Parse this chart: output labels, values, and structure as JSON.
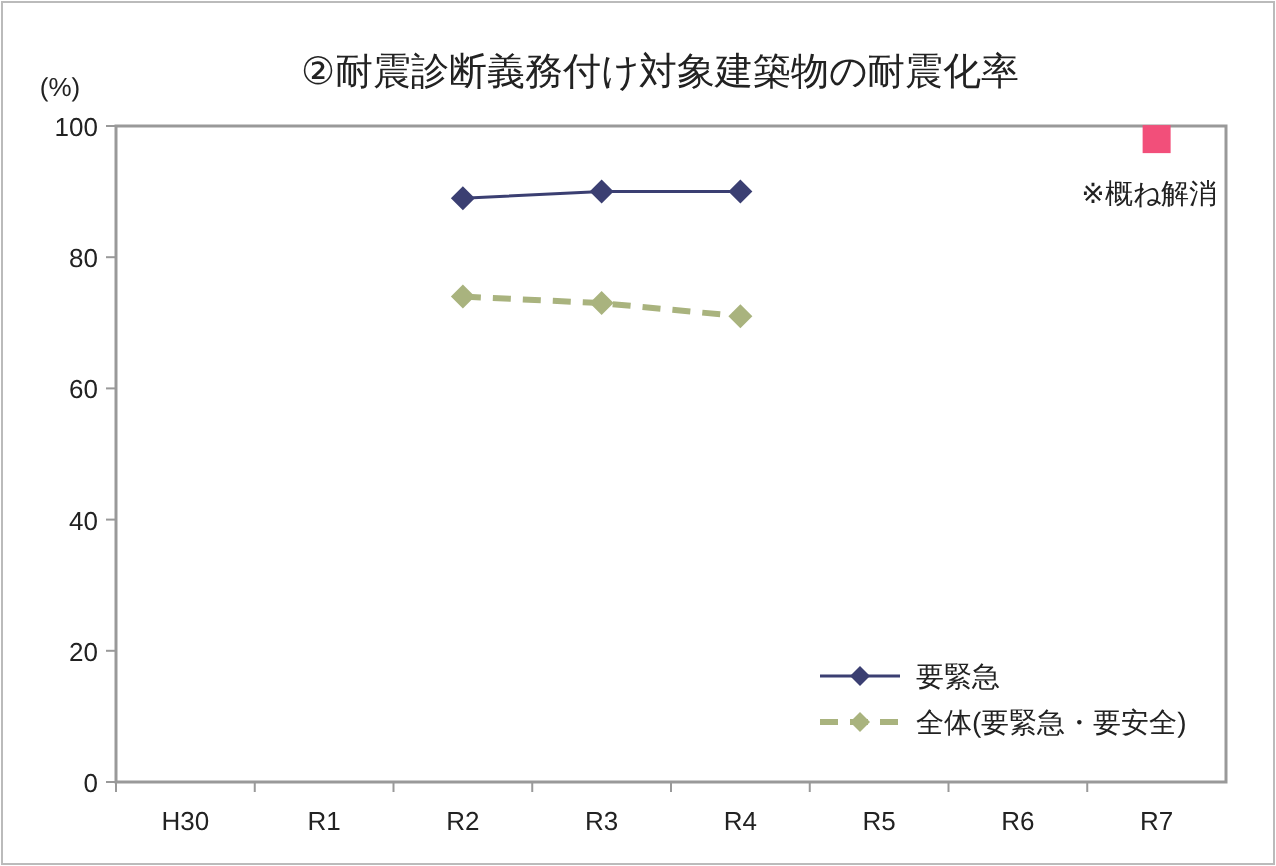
{
  "chart_data": {
    "type": "line",
    "title": "②耐震診断義務付け対象建築物の耐震化率",
    "ylabel": "(%)",
    "categories": [
      "H30",
      "R1",
      "R2",
      "R3",
      "R4",
      "R5",
      "R6",
      "R7"
    ],
    "ylim": [
      0,
      100
    ],
    "yticks": [
      0,
      20,
      40,
      60,
      80,
      100
    ],
    "grid": false,
    "legend": "bottom right",
    "series": [
      {
        "name": "要緊急",
        "color": "#3b3f72",
        "marker": "diamond",
        "line_style": "solid",
        "values": [
          null,
          null,
          89,
          90,
          90,
          null,
          null,
          null
        ]
      },
      {
        "name": "全体(要緊急・要安全)",
        "color": "#a9b37e",
        "marker": "diamond",
        "line_style": "dashed",
        "values": [
          null,
          null,
          74,
          73,
          71,
          null,
          null,
          null
        ]
      },
      {
        "type": "scatter",
        "color": "#f24f7a",
        "marker": "square",
        "values": [
          null,
          null,
          null,
          null,
          null,
          null,
          null,
          98
        ]
      }
    ],
    "annotations": [
      {
        "text": "※概ね解消",
        "x": "R7",
        "y": 98
      }
    ]
  }
}
